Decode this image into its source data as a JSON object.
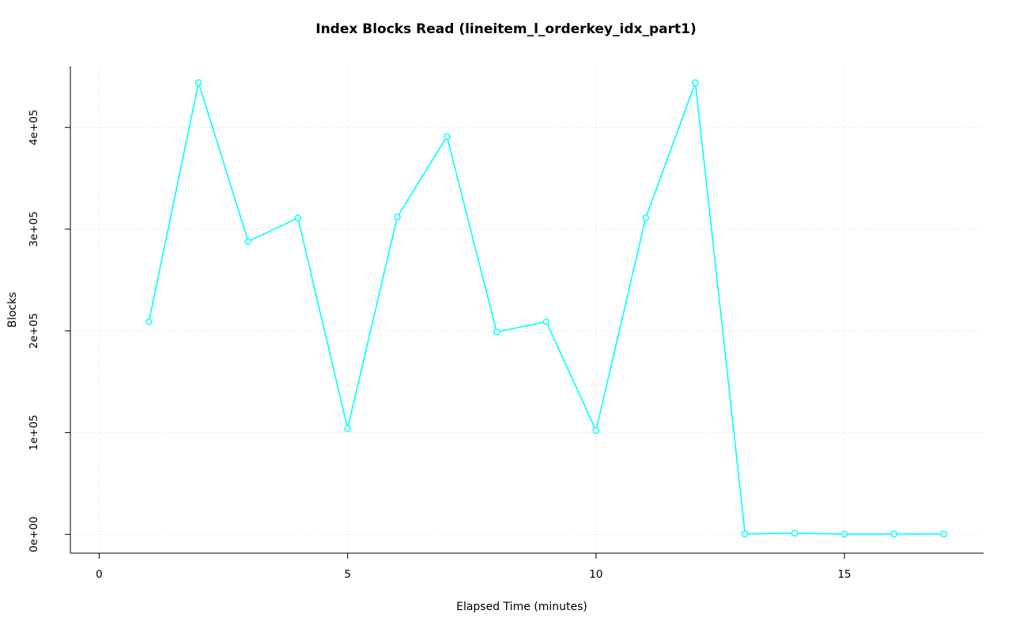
{
  "page": {
    "background_color": "#ffffff"
  },
  "chart_data": {
    "type": "line",
    "title": "Index Blocks Read (lineitem_l_orderkey_idx_part1)",
    "xlabel": "Elapsed Time (minutes)",
    "ylabel": "Blocks",
    "x": [
      1,
      2,
      3,
      4,
      5,
      6,
      7,
      8,
      9,
      10,
      11,
      12,
      13,
      14,
      15,
      16,
      17
    ],
    "values": [
      209000,
      444000,
      288000,
      311000,
      104000,
      312000,
      391000,
      199000,
      209000,
      102000,
      311000,
      444000,
      400,
      1200,
      300,
      500,
      400
    ],
    "xlim": [
      -0.58,
      17.8
    ],
    "ylim": [
      -18500,
      460000
    ],
    "x_ticks": [
      {
        "value": 0,
        "label": "0"
      },
      {
        "value": 5,
        "label": "5"
      },
      {
        "value": 10,
        "label": "10"
      },
      {
        "value": 15,
        "label": "15"
      }
    ],
    "y_ticks": [
      {
        "value": 0,
        "label": "0e+00"
      },
      {
        "value": 100000,
        "label": "1e+05"
      },
      {
        "value": 200000,
        "label": "2e+05"
      },
      {
        "value": 300000,
        "label": "3e+05"
      },
      {
        "value": 400000,
        "label": "4e+05"
      }
    ],
    "grid": true,
    "legend": "none",
    "marker": "open-circle",
    "line_color": "#00ffff",
    "grid_color": "#d9d9d9",
    "axis_color": "#000000"
  }
}
